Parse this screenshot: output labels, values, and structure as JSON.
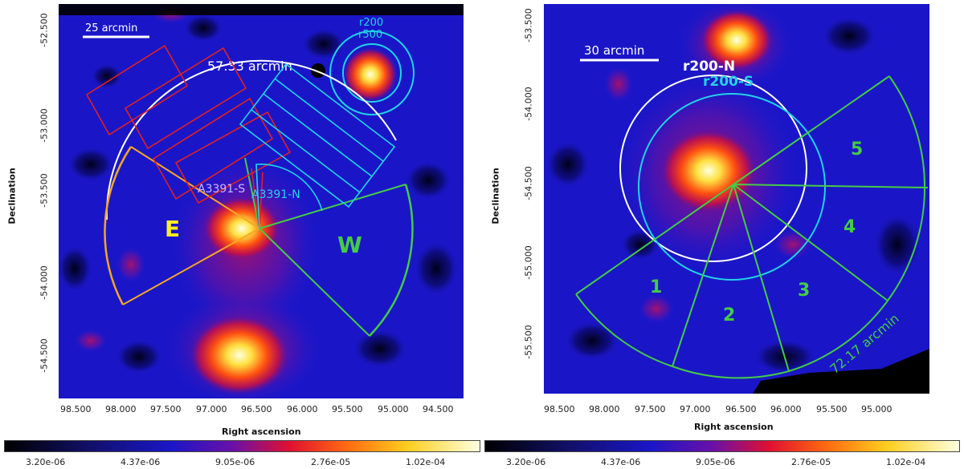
{
  "colors": {
    "image_background": "#1a16c8",
    "scale_bar": "#ffffff",
    "radius_white": "#ffffff",
    "radius_cyan": "#22d3e6",
    "sector_green": "#44cc44",
    "sector_orange": "#f5a623",
    "box_red": "#e02020",
    "label_yellow": "#ffee22",
    "label_green": "#44cc44",
    "label_lilac": "#c8b8ff"
  },
  "left_panel": {
    "x_ticks": [
      "98.500",
      "98.000",
      "97.500",
      "97.000",
      "96.500",
      "96.000",
      "95.500",
      "95.000",
      "94.500"
    ],
    "y_ticks": [
      "-52.500",
      "-53.000",
      "-53.500",
      "-54.000",
      "-54.500"
    ],
    "xlabel": "Right ascension",
    "ylabel": "Declination",
    "scale_bar_label": "25 arcmin",
    "radius_label": "57.33 arcmin",
    "r200_label": "r200",
    "r500_label": "r500",
    "a3391_s_label": "A3391-S",
    "a3391_n_label": "A3391-N",
    "east_label": "E",
    "west_label": "W",
    "colorbar_ticks": [
      "3.20e-06",
      "4.37e-06",
      "9.05e-06",
      "2.76e-05",
      "1.02e-04"
    ]
  },
  "right_panel": {
    "x_ticks": [
      "98.500",
      "98.000",
      "97.500",
      "97.000",
      "96.500",
      "96.000",
      "95.500",
      "95.000"
    ],
    "y_ticks": [
      "-53.500",
      "-54.000",
      "-54.500",
      "-55.000",
      "-55.500"
    ],
    "xlabel": "Right ascension",
    "ylabel": "Declination",
    "scale_bar_label": "30 arcmin",
    "r200n_label": "r200-N",
    "r200s_label": "r200-S",
    "radius_label": "72.17 arcmin",
    "sector_labels": [
      "1",
      "2",
      "3",
      "4",
      "5"
    ],
    "colorbar_ticks": [
      "3.20e-06",
      "4.37e-06",
      "9.05e-06",
      "2.76e-05",
      "1.02e-04"
    ]
  }
}
